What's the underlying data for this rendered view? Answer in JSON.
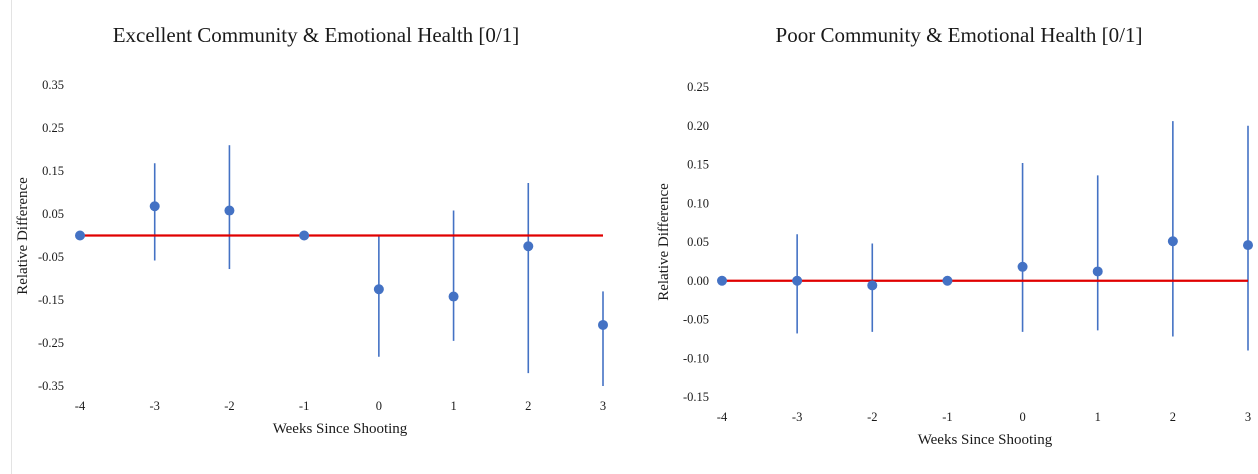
{
  "chart_data": [
    {
      "type": "scatter",
      "title": "Excellent Community & Emotional Health [0/1]",
      "xlabel": "Weeks Since Shooting",
      "ylabel": "Relative Difference",
      "x": [
        -4,
        -3,
        -2,
        -1,
        0,
        1,
        2,
        3
      ],
      "x_tick_labels": [
        "-4",
        "-3",
        "-2",
        "-1",
        "0",
        "1",
        "2",
        "3"
      ],
      "y_tick_labels": [
        "0.35",
        "0.25",
        "0.15",
        "0.05",
        "-0.05",
        "-0.15",
        "-0.25",
        "-0.35"
      ],
      "ylim": [
        -0.35,
        0.35
      ],
      "series": [
        {
          "values": [
            0.0,
            0.068,
            0.058,
            0.0,
            -0.125,
            -0.142,
            -0.025,
            -0.208
          ],
          "ci_low": [
            0.0,
            -0.058,
            -0.078,
            0.0,
            -0.282,
            -0.245,
            -0.32,
            -0.35
          ],
          "ci_high": [
            0.0,
            0.168,
            0.21,
            0.0,
            0.0,
            0.058,
            0.122,
            -0.13
          ]
        }
      ],
      "reference_line": 0,
      "colors": {
        "points": "#4472c4",
        "reference": "#e00000"
      },
      "grid": false
    },
    {
      "type": "scatter",
      "title": "Poor Community & Emotional Health [0/1]",
      "xlabel": "Weeks Since Shooting",
      "ylabel": "Relative Difference",
      "x": [
        -4,
        -3,
        -2,
        -1,
        0,
        1,
        2,
        3
      ],
      "x_tick_labels": [
        "-4",
        "-3",
        "-2",
        "-1",
        "0",
        "1",
        "2",
        "3"
      ],
      "y_tick_labels": [
        "0.25",
        "0.20",
        "0.15",
        "0.10",
        "0.05",
        "0.00",
        "-0.05",
        "-0.10",
        "-0.15"
      ],
      "ylim": [
        -0.15,
        0.25
      ],
      "series": [
        {
          "values": [
            0.0,
            0.0,
            -0.006,
            0.0,
            0.018,
            0.012,
            0.051,
            0.046
          ],
          "ci_low": [
            0.0,
            -0.068,
            -0.066,
            0.0,
            -0.066,
            -0.064,
            -0.072,
            -0.09
          ],
          "ci_high": [
            0.0,
            0.06,
            0.048,
            0.0,
            0.152,
            0.136,
            0.206,
            0.2
          ]
        }
      ],
      "reference_line": 0,
      "colors": {
        "points": "#4472c4",
        "reference": "#e00000"
      },
      "grid": false
    }
  ]
}
